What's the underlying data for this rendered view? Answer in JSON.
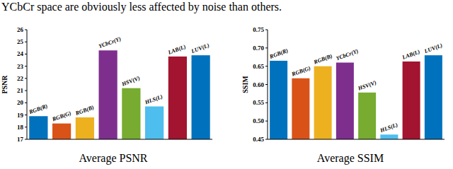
{
  "caption": "YCbCr space are obviously less affected by noise than others.",
  "chart_data": [
    {
      "type": "bar",
      "title": "Average PSNR",
      "y_label": "PSNR",
      "categories": [
        "RGB(R)",
        "RGB(G)",
        "RGB(B)",
        "YCbCr(Y)",
        "HSV(V)",
        "HLS(L)",
        "LAB(L)",
        "LUV(L)"
      ],
      "values": [
        18.9,
        18.3,
        18.8,
        24.3,
        21.2,
        19.7,
        23.8,
        23.9
      ],
      "colors": [
        "#0072bd",
        "#d95319",
        "#edb120",
        "#7e2f8e",
        "#77ac30",
        "#4dbeee",
        "#a2142f",
        "#0072bd"
      ],
      "ylim": [
        17,
        26
      ],
      "yticks": [
        17,
        18,
        19,
        20,
        21,
        22,
        23,
        24,
        25,
        26
      ]
    },
    {
      "type": "bar",
      "title": "Average SSIM",
      "y_label": "SSIM",
      "categories": [
        "RGB(R)",
        "RGB(G)",
        "RGB(B)",
        "YCbCr(Y)",
        "HSV(V)",
        "HLS(L)",
        "LAB(L)",
        "LUV(L)"
      ],
      "values": [
        0.665,
        0.617,
        0.65,
        0.66,
        0.578,
        0.463,
        0.663,
        0.68
      ],
      "colors": [
        "#0072bd",
        "#d95319",
        "#edb120",
        "#7e2f8e",
        "#77ac30",
        "#4dbeee",
        "#a2142f",
        "#0072bd"
      ],
      "ylim": [
        0.45,
        0.75
      ],
      "yticks": [
        0.45,
        {
          "value": 0.5,
          "label": "0.50"
        },
        0.55,
        {
          "value": 0.6,
          "label": "0.60"
        },
        0.65,
        {
          "value": 0.7,
          "label": "0.70"
        },
        0.75
      ]
    }
  ]
}
